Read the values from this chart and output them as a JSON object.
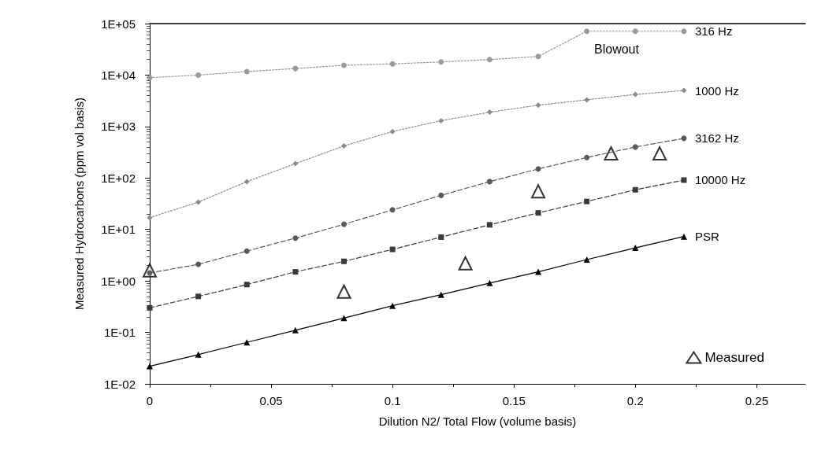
{
  "chart_data": {
    "type": "line",
    "xlabel": "Dilution N2/ Total Flow (volume basis)",
    "ylabel": "Measured Hydrocarbons (ppm vol basis)",
    "x": [
      0,
      0.02,
      0.04,
      0.06,
      0.08,
      0.1,
      0.12,
      0.14,
      0.16,
      0.18,
      0.2,
      0.22
    ],
    "series": [
      {
        "name": "316 Hz",
        "color": "#9a9a9a",
        "marker": "circle",
        "line_style": "dotted",
        "values": [
          8900,
          10000,
          11700,
          13400,
          15500,
          16500,
          18000,
          20000,
          23000,
          71000,
          71000,
          71000
        ]
      },
      {
        "name": "1000 Hz",
        "color": "#8a8a8a",
        "marker": "diamond",
        "line_style": "dotted",
        "values": [
          17,
          34,
          85,
          190,
          420,
          800,
          1300,
          1900,
          2600,
          3300,
          4200,
          5000
        ]
      },
      {
        "name": "3162 Hz",
        "color": "#5a5a5a",
        "marker": "circle",
        "line_style": "dashed",
        "values": [
          1.43,
          2.1,
          3.8,
          6.8,
          12.6,
          24,
          46,
          85,
          150,
          250,
          400,
          590
        ]
      },
      {
        "name": "10000 Hz",
        "color": "#3a3a3a",
        "marker": "square",
        "line_style": "dashed",
        "values": [
          0.3,
          0.5,
          0.85,
          1.5,
          2.4,
          4.1,
          7.1,
          12.3,
          21,
          35,
          59,
          91
        ]
      },
      {
        "name": "PSR",
        "color": "#000000",
        "marker": "triangle",
        "line_style": "solid",
        "values": [
          0.022,
          0.037,
          0.064,
          0.11,
          0.19,
          0.33,
          0.54,
          0.91,
          1.5,
          2.6,
          4.4,
          7.3
        ]
      },
      {
        "name": "Measured",
        "type": "scatter",
        "color": "#000000",
        "marker": "triangle",
        "x": [
          0,
          0.08,
          0.13,
          0.16,
          0.19,
          0.21
        ],
        "values": [
          1.6,
          0.62,
          2.2,
          55,
          300,
          300
        ]
      }
    ],
    "log": "y",
    "xlim": [
      0,
      0.27
    ],
    "xticks": [
      0,
      0.05,
      0.1,
      0.15,
      0.2,
      0.25
    ],
    "ylim": [
      0.01,
      100000
    ],
    "yticks": [
      {
        "value": 0.01,
        "label": "1E-02"
      },
      {
        "value": 0.1,
        "label": "1E-01"
      },
      {
        "value": 1,
        "label": "1E+00"
      },
      {
        "value": 10,
        "label": "1E+01"
      },
      {
        "value": 100,
        "label": "1E+02"
      },
      {
        "value": 1000,
        "label": "1E+03"
      },
      {
        "value": 10000,
        "label": "1E+04"
      },
      {
        "value": 100000,
        "label": "1E+05"
      }
    ],
    "grid": false,
    "legend": "bottom right",
    "annotations": [
      "Blowout"
    ]
  }
}
